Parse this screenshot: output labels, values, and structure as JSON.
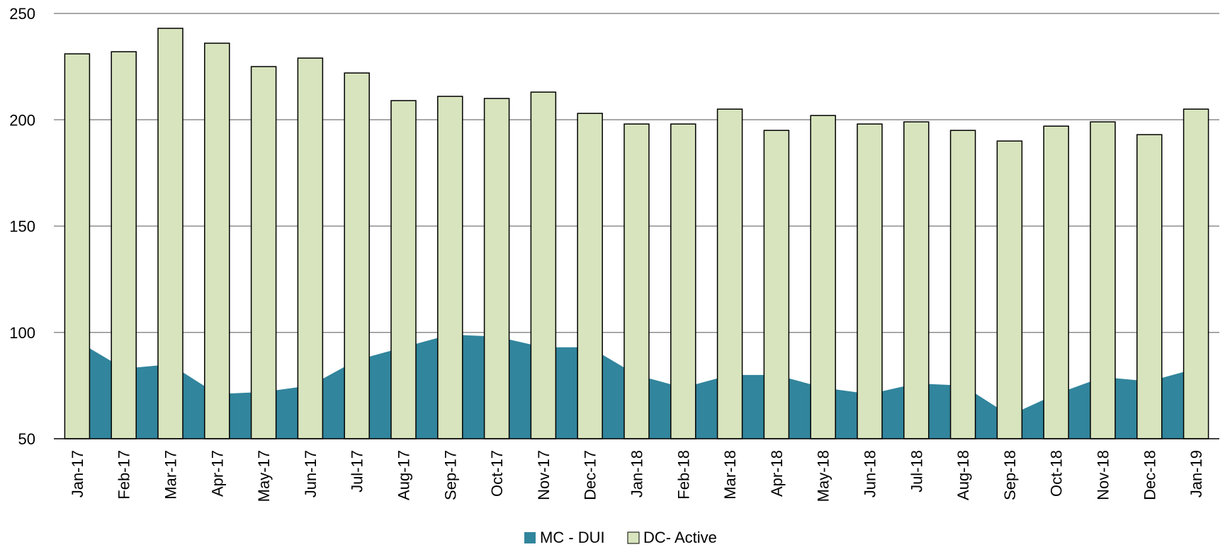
{
  "chart_data": {
    "type": "bar",
    "categories": [
      "Jan-17",
      "Feb-17",
      "Mar-17",
      "Apr-17",
      "May-17",
      "Jun-17",
      "Jul-17",
      "Aug-17",
      "Sep-17",
      "Oct-17",
      "Nov-17",
      "Dec-17",
      "Jan-18",
      "Feb-18",
      "Mar-18",
      "Apr-18",
      "May-18",
      "Jun-18",
      "Jul-18",
      "Aug-18",
      "Sep-18",
      "Oct-18",
      "Nov-18",
      "Dec-18",
      "Jan-19"
    ],
    "series": [
      {
        "name": "MC - DUI",
        "kind": "area",
        "color": "#31859c",
        "values": [
          96,
          83,
          85,
          71,
          72,
          75,
          87,
          93,
          99,
          98,
          93,
          93,
          80,
          74,
          80,
          80,
          74,
          71,
          76,
          75,
          61,
          71,
          79,
          77,
          83
        ]
      },
      {
        "name": "DC- Active",
        "kind": "bar",
        "color": "#d7e4bd",
        "values": [
          231,
          232,
          243,
          236,
          225,
          229,
          222,
          209,
          211,
          210,
          213,
          203,
          198,
          198,
          205,
          195,
          202,
          198,
          199,
          195,
          190,
          197,
          199,
          193,
          205
        ]
      }
    ],
    "ylim": [
      50,
      250
    ],
    "yticks": [
      "50",
      "100",
      "150",
      "200",
      "250"
    ],
    "grid": true,
    "legend_position": "bottom-center"
  }
}
